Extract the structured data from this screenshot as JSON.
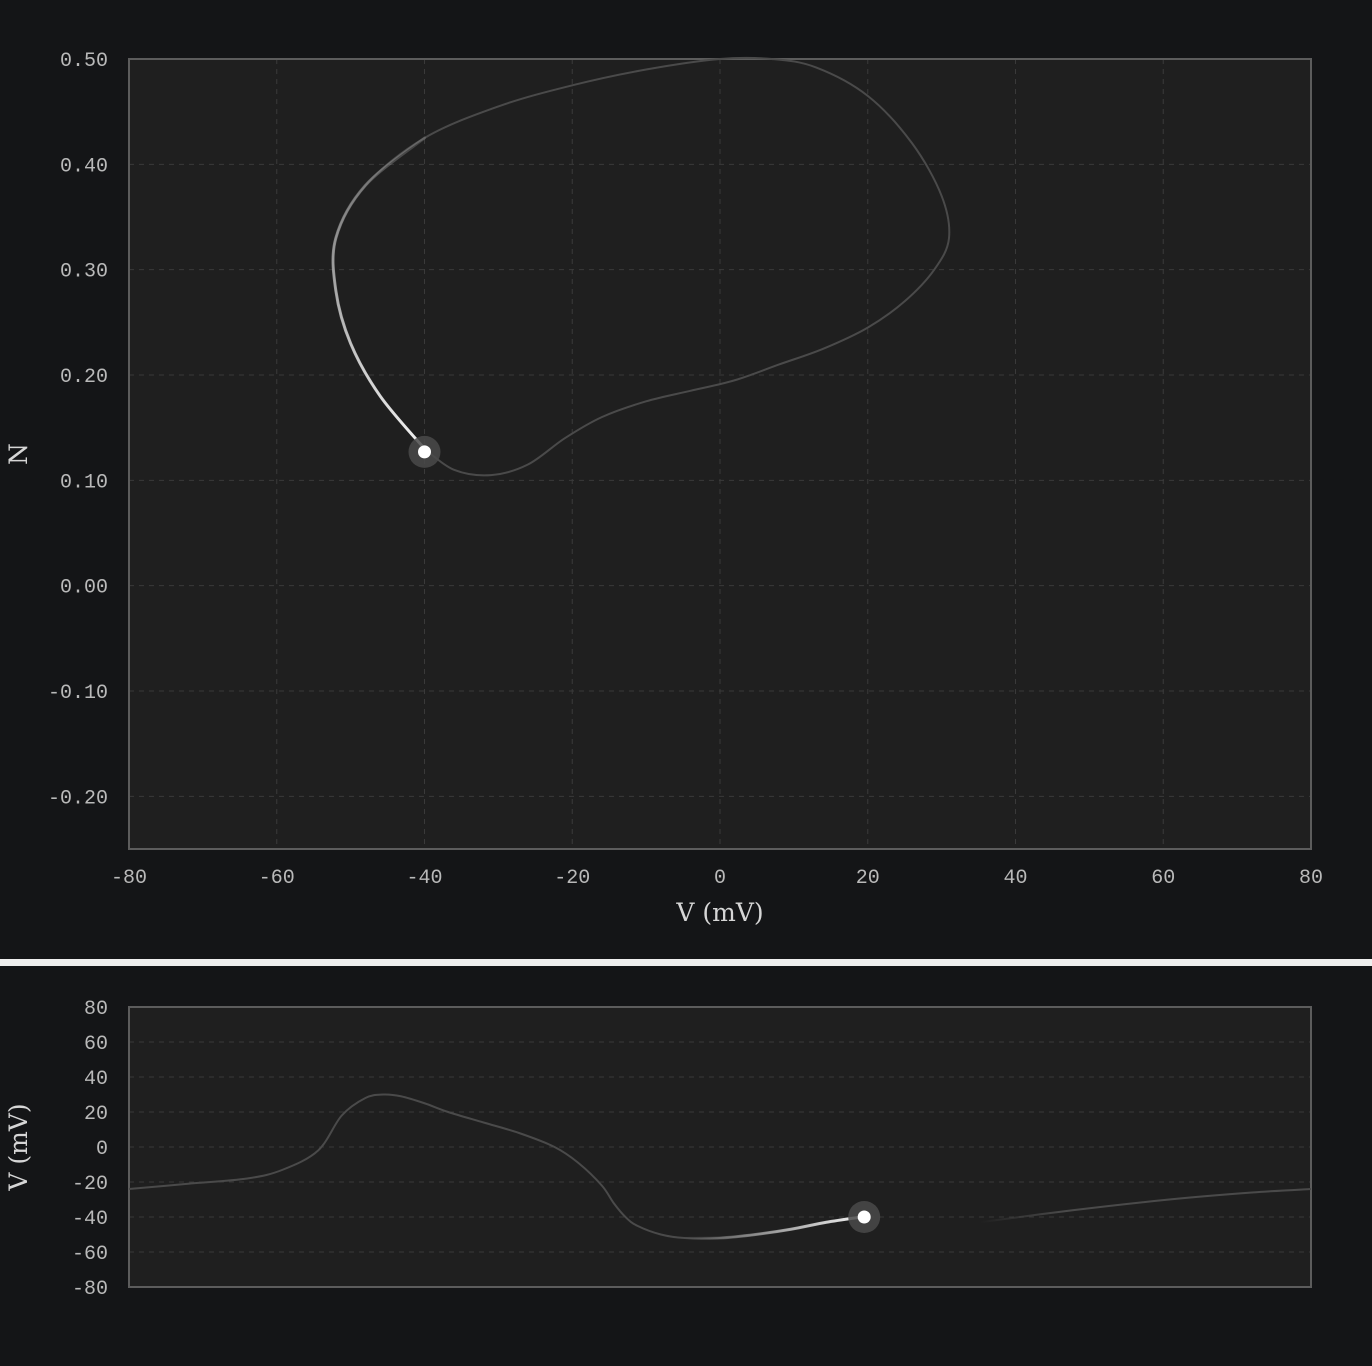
{
  "colors": {
    "page_background": "#141517",
    "plot_background": "#1f1f1f",
    "plot_border": "#5c5c5c",
    "grid": "#3a3a3a",
    "tick_text": "#b9b9b9",
    "trace_dim": "#4a4a4a",
    "trace_bright": "#f2f2f2",
    "marker": "#ffffff",
    "marker_halo": "#4a4a4a",
    "divider": "#eeeeee"
  },
  "chart_data": [
    {
      "type": "line",
      "title": "",
      "xlabel": "V (mV)",
      "ylabel": "N",
      "xlim": [
        -80,
        80
      ],
      "ylim": [
        -0.25,
        0.5
      ],
      "xticks": [
        -80,
        -60,
        -40,
        -20,
        0,
        20,
        40,
        60,
        80
      ],
      "xtick_labels": [
        "-80",
        "-60",
        "-40",
        "-20",
        "0",
        "20",
        "40",
        "60",
        "80"
      ],
      "yticks": [
        0.5,
        0.4,
        0.3,
        0.2,
        0.1,
        0.0,
        -0.1,
        -0.2
      ],
      "ytick_labels": [
        "0.50",
        "0.40",
        "0.30",
        "0.20",
        "0.10",
        "0.00",
        "-0.10",
        "-0.20"
      ],
      "grid": true,
      "legend": "none",
      "series": [
        {
          "x": [
            -40,
            -36,
            -31,
            -26,
            -21,
            -16,
            -10,
            -4,
            2,
            8,
            14,
            20,
            25,
            29,
            31,
            30,
            26,
            20,
            13,
            7,
            0,
            -10,
            -20,
            -30,
            -40,
            -48,
            -52,
            -52,
            -50,
            -46,
            -40
          ],
          "y": [
            0.13,
            0.11,
            0.105,
            0.115,
            0.14,
            0.16,
            0.175,
            0.185,
            0.195,
            0.21,
            0.225,
            0.245,
            0.27,
            0.3,
            0.33,
            0.37,
            0.42,
            0.465,
            0.492,
            0.5,
            0.5,
            0.49,
            0.475,
            0.455,
            0.425,
            0.38,
            0.33,
            0.28,
            0.23,
            0.18,
            0.13
          ]
        }
      ],
      "highlight": {
        "trail_points": 7,
        "current": {
          "x": -40,
          "y": 0.127
        }
      }
    },
    {
      "type": "line",
      "title": "",
      "xlabel": "",
      "ylabel": "V (mV)",
      "ylim": [
        -80,
        80
      ],
      "xlim": [
        0,
        1
      ],
      "yticks": [
        80,
        60,
        40,
        20,
        0,
        -20,
        -40,
        -60,
        -80
      ],
      "ytick_labels": [
        "80",
        "60",
        "40",
        "20",
        "0",
        "-20",
        "-40",
        "-60",
        "-80"
      ],
      "grid": true,
      "legend": "none",
      "series": [
        {
          "x": [
            0,
            0.05,
            0.1,
            0.13,
            0.16,
            0.18,
            0.2,
            0.215,
            0.23,
            0.25,
            0.27,
            0.3,
            0.33,
            0.36,
            0.38,
            0.4,
            0.41,
            0.42,
            0.43,
            0.45,
            0.47,
            0.5,
            0.53,
            0.56,
            0.59,
            0.62
          ],
          "y": [
            -24,
            -21,
            -18,
            -13,
            -2,
            18,
            28,
            30,
            29,
            25,
            20,
            14,
            8,
            0,
            -9,
            -22,
            -32,
            -40,
            -45,
            -50,
            -52,
            -52,
            -50,
            -47,
            -43,
            -40
          ]
        },
        {
          "x": [
            0.72,
            0.8,
            0.88,
            0.95,
            1.0
          ],
          "y": [
            -43,
            -36,
            -30,
            -26,
            -24
          ]
        }
      ],
      "highlight": {
        "trail_from_x": 0.47,
        "current": {
          "x": 0.622,
          "y": -40
        }
      }
    }
  ]
}
